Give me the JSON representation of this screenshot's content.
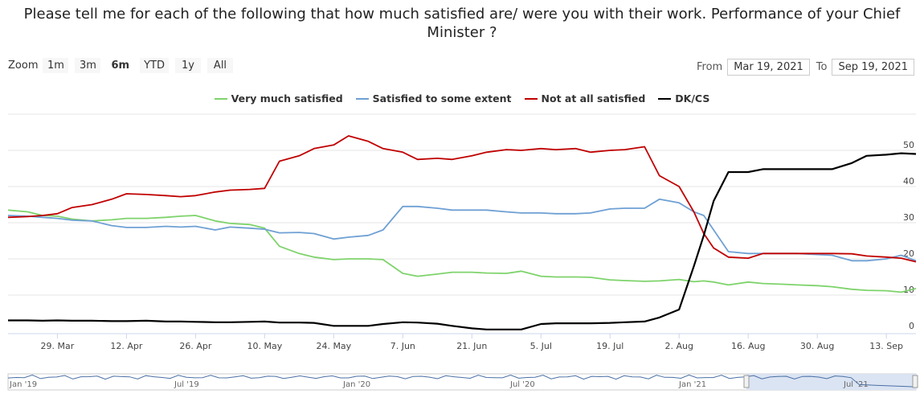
{
  "title_line1": "Please tell me for each of the following that how much satisfied are/ were you with their work. Performance of your Chief",
  "title_line2": "Minister ?",
  "range_selector": {
    "zoom_label": "Zoom",
    "buttons": [
      "1m",
      "3m",
      "6m",
      "YTD",
      "1y",
      "All"
    ],
    "active": "6m"
  },
  "date_range": {
    "from_label": "From",
    "from": "Mar 19, 2021",
    "to_label": "To",
    "to": "Sep 19, 2021"
  },
  "navigator": {
    "labels": [
      "Jan '19",
      "Jul '19",
      "Jan '20",
      "Jul '20",
      "Jan '21",
      "Jul '21"
    ]
  },
  "chart_data": {
    "type": "line",
    "x": [
      "2021-03-19",
      "2021-03-23",
      "2021-03-26",
      "2021-03-29",
      "2021-04-01",
      "2021-04-05",
      "2021-04-09",
      "2021-04-12",
      "2021-04-16",
      "2021-04-20",
      "2021-04-23",
      "2021-04-26",
      "2021-04-30",
      "2021-05-03",
      "2021-05-07",
      "2021-05-10",
      "2021-05-13",
      "2021-05-17",
      "2021-05-20",
      "2021-05-24",
      "2021-05-27",
      "2021-05-31",
      "2021-06-03",
      "2021-06-07",
      "2021-06-10",
      "2021-06-14",
      "2021-06-17",
      "2021-06-21",
      "2021-06-24",
      "2021-06-28",
      "2021-07-01",
      "2021-07-05",
      "2021-07-08",
      "2021-07-12",
      "2021-07-15",
      "2021-07-19",
      "2021-07-22",
      "2021-07-26",
      "2021-07-29",
      "2021-08-02",
      "2021-08-05",
      "2021-08-07",
      "2021-08-09",
      "2021-08-12",
      "2021-08-16",
      "2021-08-19",
      "2021-08-23",
      "2021-08-26",
      "2021-08-30",
      "2021-09-02",
      "2021-09-06",
      "2021-09-09",
      "2021-09-13",
      "2021-09-16",
      "2021-09-19"
    ],
    "series": [
      {
        "name": "Very much satisfied",
        "color": "#7ed36b",
        "values": [
          33.5,
          33,
          32,
          31.8,
          31,
          30.5,
          30.8,
          31.2,
          31.2,
          31.5,
          31.8,
          32,
          30.5,
          29.8,
          29.5,
          28.5,
          23.5,
          21.5,
          20.5,
          19.8,
          20,
          20,
          19.8,
          16,
          15.2,
          15.8,
          16.3,
          16.3,
          16.1,
          16,
          16.6,
          15.2,
          15,
          15,
          14.9,
          14.2,
          14,
          13.8,
          13.9,
          14.3,
          13.7,
          13.9,
          13.6,
          12.8,
          13.6,
          13.2,
          13,
          12.8,
          12.6,
          12.3,
          11.6,
          11.3,
          11.2,
          10.8,
          11.8
        ]
      },
      {
        "name": "Satisfied to some extent",
        "color": "#6fa0d4",
        "values": [
          32,
          31.8,
          31.5,
          31.2,
          30.7,
          30.5,
          29.2,
          28.7,
          28.7,
          29,
          28.8,
          29,
          28,
          28.8,
          28.5,
          28.2,
          27.2,
          27.3,
          27,
          25.5,
          26,
          26.5,
          28,
          34.5,
          34.5,
          34,
          33.5,
          33.5,
          33.5,
          33,
          32.7,
          32.7,
          32.5,
          32.5,
          32.7,
          33.8,
          34,
          34,
          36.5,
          35.5,
          33,
          32,
          28,
          22,
          21.5,
          21.5,
          21.5,
          21.5,
          21.2,
          21,
          19.5,
          19.5,
          20,
          21,
          19.5
        ]
      },
      {
        "name": "Not at all satisfied",
        "color": "#c00000",
        "values": [
          31.5,
          31.7,
          32,
          32.5,
          34.2,
          35,
          36.5,
          38,
          37.8,
          37.5,
          37.2,
          37.5,
          38.5,
          39,
          39.2,
          39.5,
          47,
          48.5,
          50.5,
          51.5,
          54,
          52.5,
          50.5,
          49.5,
          47.5,
          47.8,
          47.5,
          48.5,
          49.5,
          50.2,
          50,
          50.5,
          50.2,
          50.5,
          49.5,
          50,
          50.2,
          51,
          43,
          40,
          33,
          27,
          23,
          20.5,
          20.2,
          21.5,
          21.5,
          21.5,
          21.5,
          21.5,
          21.4,
          20.8,
          20.5,
          20.2,
          19.2
        ]
      },
      {
        "name": "DK/CS",
        "color": "#000000",
        "values": [
          3,
          3,
          2.9,
          3,
          2.9,
          2.9,
          2.8,
          2.8,
          2.9,
          2.7,
          2.7,
          2.6,
          2.5,
          2.5,
          2.6,
          2.7,
          2.4,
          2.4,
          2.3,
          1.5,
          1.5,
          1.5,
          2,
          2.5,
          2.4,
          2.1,
          1.5,
          0.8,
          0.5,
          0.5,
          0.5,
          2,
          2.2,
          2.2,
          2.2,
          2.3,
          2.5,
          2.7,
          3.8,
          6,
          18,
          26.5,
          36,
          44,
          44,
          44.8,
          44.8,
          44.8,
          44.8,
          44.8,
          46.5,
          48.5,
          48.8,
          49.2,
          49
        ]
      }
    ],
    "x_tick_labels": [
      "29. Mar",
      "12. Apr",
      "26. Apr",
      "10. May",
      "24. May",
      "7. Jun",
      "21. Jun",
      "5. Jul",
      "19. Jul",
      "2. Aug",
      "16. Aug",
      "30. Aug",
      "13. Sep"
    ],
    "x_tick_dates": [
      "2021-03-29",
      "2021-04-12",
      "2021-04-26",
      "2021-05-10",
      "2021-05-24",
      "2021-06-07",
      "2021-06-21",
      "2021-07-05",
      "2021-07-19",
      "2021-08-02",
      "2021-08-16",
      "2021-08-30",
      "2021-09-13"
    ],
    "y_ticks": [
      0,
      10,
      20,
      30,
      40,
      50
    ],
    "ylim": [
      0,
      60
    ],
    "xlim": [
      "2021-03-19",
      "2021-09-19"
    ],
    "grid": true,
    "legend_position": "top-center"
  }
}
